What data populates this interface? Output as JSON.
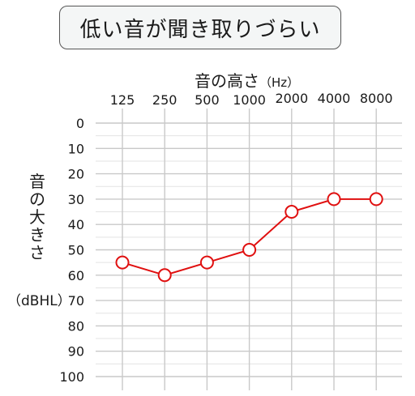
{
  "title": "低い音が聞き取りづらい",
  "xlabel": {
    "main": "音の高さ",
    "unit": "（Hz）"
  },
  "ylabel": {
    "chars": [
      "音",
      "の",
      "大",
      "き",
      "さ"
    ],
    "unit": "（dBHL）"
  },
  "chart_data": {
    "type": "line",
    "categories": [
      "125",
      "250",
      "500",
      "1000",
      "2000",
      "4000",
      "8000"
    ],
    "y_ticks": [
      "0",
      "10",
      "20",
      "30",
      "40",
      "50",
      "60",
      "70",
      "80",
      "90",
      "100"
    ],
    "ylim": [
      0,
      100
    ],
    "y_inverted": true,
    "grid": true,
    "series": [
      {
        "values": [
          55,
          60,
          55,
          50,
          35,
          30,
          30
        ],
        "color": "#e01010",
        "marker": "open-circle"
      }
    ]
  }
}
